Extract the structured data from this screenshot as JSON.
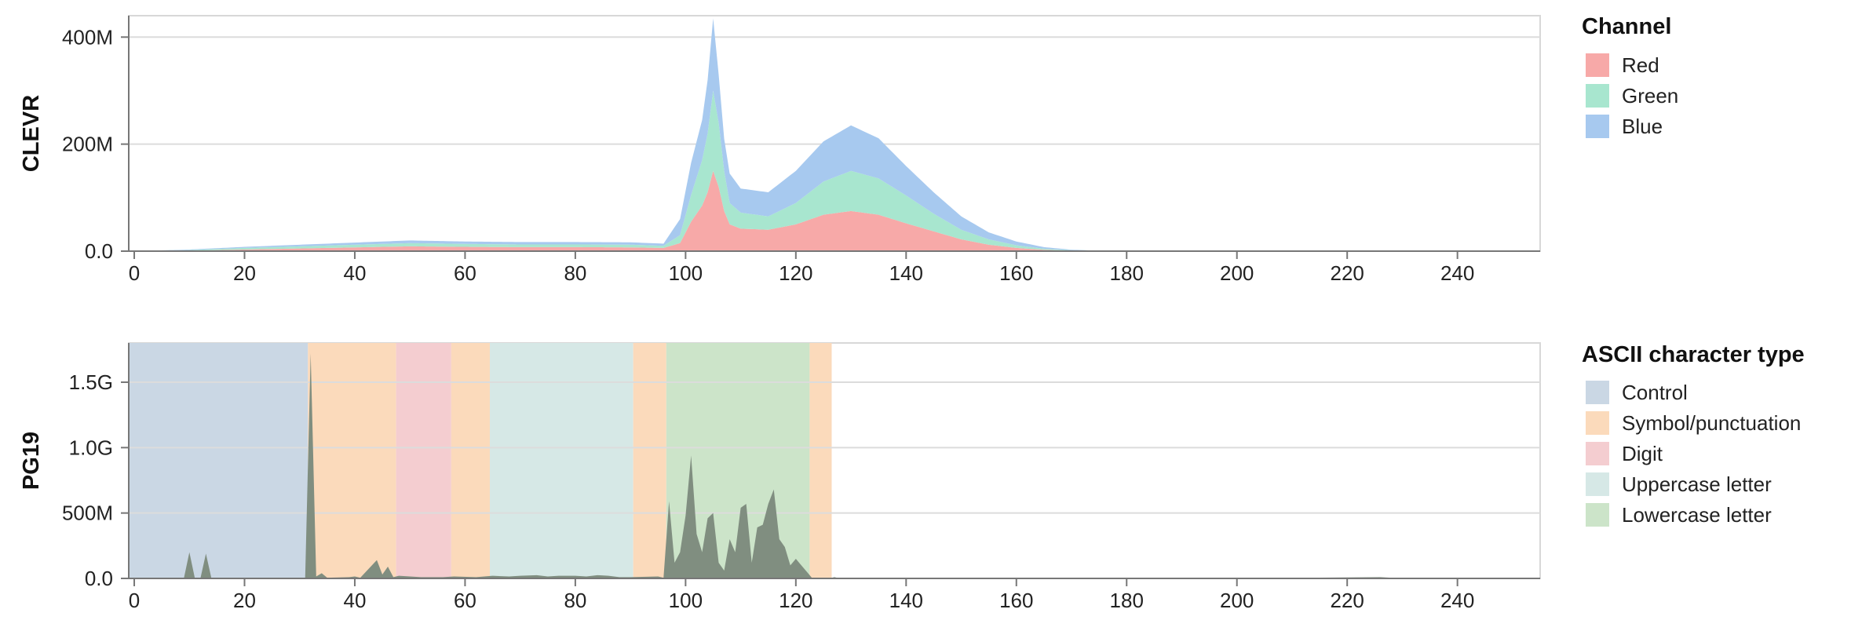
{
  "chart_data": [
    {
      "type": "area",
      "stacked": true,
      "ylabel": "CLEVR",
      "xlabel": "",
      "xlim": [
        -1,
        255
      ],
      "ylim": [
        0,
        440000000
      ],
      "xticks": [
        0,
        20,
        40,
        60,
        80,
        100,
        120,
        140,
        160,
        180,
        200,
        220,
        240
      ],
      "yticks": [
        0,
        200000000,
        400000000
      ],
      "ytick_labels": [
        "0.0",
        "200M",
        "400M"
      ],
      "grid": true,
      "legend": {
        "title": "Channel",
        "placement": "right"
      },
      "series": [
        {
          "name": "Red",
          "color": "#f7a9a8",
          "points": [
            [
              0,
              0
            ],
            [
              10,
              1000000
            ],
            [
              20,
              3000000
            ],
            [
              30,
              5000000
            ],
            [
              40,
              7000000
            ],
            [
              50,
              9000000
            ],
            [
              60,
              8000000
            ],
            [
              70,
              7500000
            ],
            [
              80,
              7500000
            ],
            [
              90,
              7000000
            ],
            [
              96,
              6000000
            ],
            [
              99,
              15000000
            ],
            [
              101,
              55000000
            ],
            [
              103,
              85000000
            ],
            [
              104,
              110000000
            ],
            [
              105,
              150000000
            ],
            [
              106,
              120000000
            ],
            [
              107,
              75000000
            ],
            [
              108,
              50000000
            ],
            [
              110,
              42000000
            ],
            [
              115,
              40000000
            ],
            [
              120,
              50000000
            ],
            [
              125,
              68000000
            ],
            [
              130,
              75000000
            ],
            [
              135,
              68000000
            ],
            [
              140,
              52000000
            ],
            [
              145,
              37000000
            ],
            [
              150,
              22000000
            ],
            [
              155,
              12000000
            ],
            [
              160,
              6000000
            ],
            [
              165,
              2500000
            ],
            [
              170,
              1000000
            ],
            [
              175,
              300000
            ],
            [
              180,
              0
            ],
            [
              254,
              0
            ]
          ]
        },
        {
          "name": "Green",
          "color": "#a8e6cf",
          "points": [
            [
              0,
              0
            ],
            [
              10,
              1000000
            ],
            [
              20,
              3000000
            ],
            [
              30,
              4000000
            ],
            [
              40,
              5000000
            ],
            [
              50,
              6000000
            ],
            [
              60,
              5500000
            ],
            [
              70,
              5000000
            ],
            [
              80,
              5000000
            ],
            [
              90,
              5000000
            ],
            [
              96,
              4000000
            ],
            [
              99,
              15000000
            ],
            [
              101,
              50000000
            ],
            [
              103,
              85000000
            ],
            [
              104,
              110000000
            ],
            [
              105,
              150000000
            ],
            [
              106,
              120000000
            ],
            [
              107,
              75000000
            ],
            [
              108,
              40000000
            ],
            [
              110,
              30000000
            ],
            [
              115,
              25000000
            ],
            [
              120,
              40000000
            ],
            [
              125,
              62000000
            ],
            [
              130,
              75000000
            ],
            [
              135,
              68000000
            ],
            [
              140,
              52000000
            ],
            [
              145,
              33000000
            ],
            [
              150,
              18000000
            ],
            [
              155,
              10000000
            ],
            [
              160,
              5000000
            ],
            [
              165,
              2000000
            ],
            [
              170,
              700000
            ],
            [
              175,
              200000
            ],
            [
              180,
              0
            ],
            [
              254,
              0
            ]
          ]
        },
        {
          "name": "Blue",
          "color": "#a7c9ef",
          "points": [
            [
              0,
              0
            ],
            [
              10,
              1000000
            ],
            [
              20,
              2000000
            ],
            [
              30,
              3000000
            ],
            [
              40,
              4000000
            ],
            [
              50,
              5000000
            ],
            [
              60,
              4500000
            ],
            [
              70,
              4500000
            ],
            [
              80,
              4500000
            ],
            [
              90,
              4500000
            ],
            [
              96,
              4000000
            ],
            [
              99,
              30000000
            ],
            [
              101,
              60000000
            ],
            [
              103,
              75000000
            ],
            [
              104,
              100000000
            ],
            [
              105,
              135000000
            ],
            [
              106,
              90000000
            ],
            [
              107,
              60000000
            ],
            [
              108,
              55000000
            ],
            [
              110,
              45000000
            ],
            [
              115,
              45000000
            ],
            [
              120,
              60000000
            ],
            [
              125,
              75000000
            ],
            [
              130,
              85000000
            ],
            [
              135,
              75000000
            ],
            [
              140,
              55000000
            ],
            [
              145,
              40000000
            ],
            [
              150,
              25000000
            ],
            [
              155,
              13000000
            ],
            [
              160,
              7000000
            ],
            [
              165,
              3000000
            ],
            [
              170,
              1000000
            ],
            [
              175,
              300000
            ],
            [
              180,
              0
            ],
            [
              254,
              0
            ]
          ]
        }
      ]
    },
    {
      "type": "area",
      "ylabel": "PG19",
      "xlabel": "",
      "xlim": [
        -1,
        255
      ],
      "ylim": [
        0,
        1800000000
      ],
      "xticks": [
        0,
        20,
        40,
        60,
        80,
        100,
        120,
        140,
        160,
        180,
        200,
        220,
        240
      ],
      "yticks": [
        0,
        500000000,
        1000000000,
        1500000000
      ],
      "ytick_labels": [
        "0.0",
        "500M",
        "1.0G",
        "1.5G"
      ],
      "grid": true,
      "legend": {
        "title": "ASCII character type",
        "placement": "right"
      },
      "categories": [
        {
          "name": "Control",
          "color": "#cad7e4",
          "range": [
            -1,
            31.5
          ]
        },
        {
          "name": "Symbol/punctuation",
          "color": "#fbdabb",
          "range": [
            31.5,
            47.5
          ]
        },
        {
          "name": "Digit",
          "color": "#f4cdd0",
          "range": [
            47.5,
            57.5
          ]
        },
        {
          "name": "Symbol/punctuation",
          "color": "#fbdabb",
          "range": [
            57.5,
            64.5
          ]
        },
        {
          "name": "Uppercase letter",
          "color": "#d6e8e6",
          "range": [
            64.5,
            90.5
          ]
        },
        {
          "name": "Symbol/punctuation",
          "color": "#fbdabb",
          "range": [
            90.5,
            96.5
          ]
        },
        {
          "name": "Lowercase letter",
          "color": "#cce4c9",
          "range": [
            96.5,
            122.5
          ]
        },
        {
          "name": "Symbol/punctuation",
          "color": "#fbdabb",
          "range": [
            122.5,
            126.5
          ]
        }
      ],
      "legend_entries": [
        {
          "name": "Control",
          "color": "#cad7e4"
        },
        {
          "name": "Symbol/punctuation",
          "color": "#fbdabb"
        },
        {
          "name": "Digit",
          "color": "#f4cdd0"
        },
        {
          "name": "Uppercase letter",
          "color": "#d6e8e6"
        },
        {
          "name": "Lowercase letter",
          "color": "#cce4c9"
        }
      ],
      "series": [
        {
          "color": "#808e80",
          "points": [
            [
              0,
              0
            ],
            [
              9,
              0
            ],
            [
              10,
              200000000
            ],
            [
              11,
              0
            ],
            [
              12,
              0
            ],
            [
              13,
              190000000
            ],
            [
              14,
              0
            ],
            [
              31,
              0
            ],
            [
              32,
              1720000000
            ],
            [
              33,
              15000000
            ],
            [
              34,
              40000000
            ],
            [
              35,
              5000000
            ],
            [
              39,
              10000000
            ],
            [
              40,
              15000000
            ],
            [
              41,
              5000000
            ],
            [
              44,
              140000000
            ],
            [
              45,
              30000000
            ],
            [
              46,
              90000000
            ],
            [
              47,
              10000000
            ],
            [
              48,
              20000000
            ],
            [
              52,
              10000000
            ],
            [
              56,
              10000000
            ],
            [
              58,
              15000000
            ],
            [
              62,
              10000000
            ],
            [
              65,
              20000000
            ],
            [
              68,
              15000000
            ],
            [
              70,
              20000000
            ],
            [
              73,
              25000000
            ],
            [
              75,
              15000000
            ],
            [
              77,
              20000000
            ],
            [
              80,
              20000000
            ],
            [
              82,
              15000000
            ],
            [
              84,
              25000000
            ],
            [
              86,
              20000000
            ],
            [
              88,
              10000000
            ],
            [
              90,
              10000000
            ],
            [
              95,
              15000000
            ],
            [
              96,
              5000000
            ],
            [
              97,
              590000000
            ],
            [
              98,
              120000000
            ],
            [
              99,
              200000000
            ],
            [
              100,
              480000000
            ],
            [
              101,
              940000000
            ],
            [
              102,
              340000000
            ],
            [
              103,
              200000000
            ],
            [
              104,
              460000000
            ],
            [
              105,
              500000000
            ],
            [
              106,
              120000000
            ],
            [
              107,
              60000000
            ],
            [
              108,
              300000000
            ],
            [
              109,
              200000000
            ],
            [
              110,
              540000000
            ],
            [
              111,
              570000000
            ],
            [
              112,
              120000000
            ],
            [
              113,
              390000000
            ],
            [
              114,
              410000000
            ],
            [
              115,
              570000000
            ],
            [
              116,
              680000000
            ],
            [
              117,
              300000000
            ],
            [
              118,
              240000000
            ],
            [
              119,
              100000000
            ],
            [
              120,
              150000000
            ],
            [
              121,
              100000000
            ],
            [
              122,
              50000000
            ],
            [
              123,
              0
            ],
            [
              126,
              0
            ],
            [
              127,
              10000000
            ],
            [
              128,
              0
            ],
            [
              140,
              5000000
            ],
            [
              150,
              5000000
            ],
            [
              160,
              2000000
            ],
            [
              180,
              2000000
            ],
            [
              195,
              5000000
            ],
            [
              205,
              2000000
            ],
            [
              226,
              10000000
            ],
            [
              230,
              0
            ],
            [
              254,
              0
            ]
          ]
        }
      ]
    }
  ]
}
